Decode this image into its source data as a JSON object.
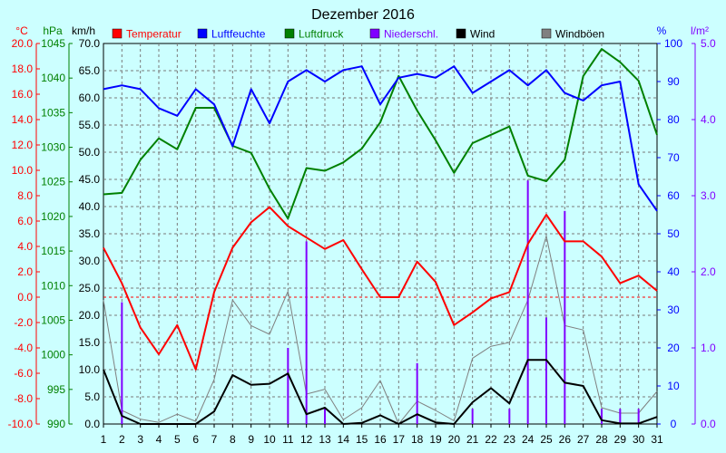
{
  "chart_data": {
    "type": "line",
    "title": "Dezember 2016",
    "x": [
      1,
      2,
      3,
      4,
      5,
      6,
      7,
      8,
      9,
      10,
      11,
      12,
      13,
      14,
      15,
      16,
      17,
      18,
      19,
      20,
      21,
      22,
      23,
      24,
      25,
      26,
      27,
      28,
      29,
      30,
      31
    ],
    "xlim": [
      1,
      31
    ],
    "axes": {
      "temp": {
        "unit": "°C",
        "range": [
          -10,
          20
        ],
        "ticks": [
          "-10.0",
          "-8.0",
          "-6.0",
          "-4.0",
          "-2.0",
          "0.0",
          "2.0",
          "4.0",
          "6.0",
          "8.0",
          "10.0",
          "12.0",
          "14.0",
          "16.0",
          "18.0",
          "20.0"
        ],
        "color": "#ff0000"
      },
      "press": {
        "unit": "hPa",
        "range": [
          990,
          1045
        ],
        "ticks": [
          "990",
          "995",
          "1000",
          "1005",
          "1010",
          "1015",
          "1020",
          "1025",
          "1030",
          "1035",
          "1040",
          "1045"
        ],
        "color": "#008000"
      },
      "wind": {
        "unit": "km/h",
        "range": [
          0,
          70
        ],
        "ticks": [
          "0.0",
          "5.0",
          "10.0",
          "15.0",
          "20.0",
          "25.0",
          "30.0",
          "35.0",
          "40.0",
          "45.0",
          "50.0",
          "55.0",
          "60.0",
          "65.0",
          "70.0"
        ],
        "color": "#000000"
      },
      "hum": {
        "unit": "%",
        "range": [
          0,
          100
        ],
        "ticks": [
          "0",
          "10",
          "20",
          "30",
          "40",
          "50",
          "60",
          "70",
          "80",
          "90",
          "100"
        ],
        "color": "#0000ff"
      },
      "precip": {
        "unit": "l/m²",
        "range": [
          0,
          5
        ],
        "ticks": [
          "0.0",
          "1.0",
          "2.0",
          "3.0",
          "4.0",
          "5.0"
        ],
        "color": "#8000ff"
      }
    },
    "series": [
      {
        "name": "Temperatur",
        "axis": "temp",
        "color": "#ff0000",
        "style": "line",
        "values": [
          3.9,
          1.1,
          -2.4,
          -4.5,
          -2.2,
          -5.7,
          0.4,
          3.9,
          5.9,
          7.1,
          5.6,
          4.7,
          3.8,
          4.5,
          2.2,
          0.0,
          0.0,
          2.8,
          1.2,
          -2.2,
          -1.2,
          -0.1,
          0.4,
          4.2,
          6.5,
          4.4,
          4.4,
          3.2,
          1.1,
          1.7,
          0.5
        ]
      },
      {
        "name": "Luftfeuchte",
        "axis": "hum",
        "color": "#0000ff",
        "style": "line",
        "values": [
          88,
          89,
          88,
          83,
          81,
          88,
          84,
          73,
          88,
          79,
          90,
          93,
          90,
          93,
          94,
          84,
          91,
          92,
          91,
          94,
          87,
          90,
          93,
          89,
          93,
          87,
          85,
          89,
          90,
          63,
          56
        ]
      },
      {
        "name": "Luftdruck",
        "axis": "press",
        "color": "#008000",
        "style": "line",
        "values": [
          1023.2,
          1023.4,
          1028.2,
          1031.3,
          1029.7,
          1035.7,
          1035.7,
          1030.2,
          1029.2,
          1024.0,
          1019.7,
          1027.0,
          1026.6,
          1027.8,
          1029.8,
          1033.6,
          1040.3,
          1035.3,
          1031.0,
          1026.3,
          1030.6,
          1031.8,
          1033.0,
          1025.9,
          1025.1,
          1028.2,
          1040.3,
          1044.2,
          1042.3,
          1039.6,
          1031.8
        ]
      },
      {
        "name": "Niederschl.",
        "axis": "precip",
        "color": "#8000ff",
        "style": "bars",
        "values": [
          0,
          1.6,
          0,
          0,
          0,
          0,
          0,
          0,
          0,
          0,
          1.0,
          2.4,
          0.2,
          0,
          0,
          0,
          0,
          0.8,
          0,
          0,
          0.2,
          0,
          0.2,
          3.2,
          1.4,
          2.8,
          0,
          0.2,
          0.2,
          0.2,
          0
        ]
      },
      {
        "name": "Wind",
        "axis": "wind",
        "color": "#000000",
        "style": "line",
        "values": [
          10.0,
          1.5,
          0,
          0,
          0,
          0,
          2.3,
          9.0,
          7.2,
          7.4,
          9.3,
          1.8,
          3.0,
          0,
          0.2,
          1.6,
          0,
          1.8,
          0.3,
          0,
          4.0,
          6.6,
          3.8,
          11.8,
          11.8,
          7.6,
          7.0,
          0.7,
          0.1,
          0.1,
          1.3
        ]
      },
      {
        "name": "Windböen",
        "axis": "wind",
        "color": "#808080",
        "style": "line",
        "values": [
          22.8,
          2.5,
          0.9,
          0.3,
          1.8,
          0.5,
          8.2,
          22.8,
          18.1,
          16.5,
          24.4,
          5.5,
          6.4,
          0.8,
          3.0,
          8.0,
          0,
          4.2,
          2.5,
          0.6,
          12.1,
          14.3,
          15.0,
          22.8,
          34.6,
          18.1,
          17.3,
          3.0,
          2.0,
          2.0,
          6.0
        ]
      }
    ],
    "legend": {
      "position": "top"
    },
    "grid": true,
    "zero_line": {
      "axis": "temp",
      "value": 0,
      "color": "#ff0000"
    }
  }
}
